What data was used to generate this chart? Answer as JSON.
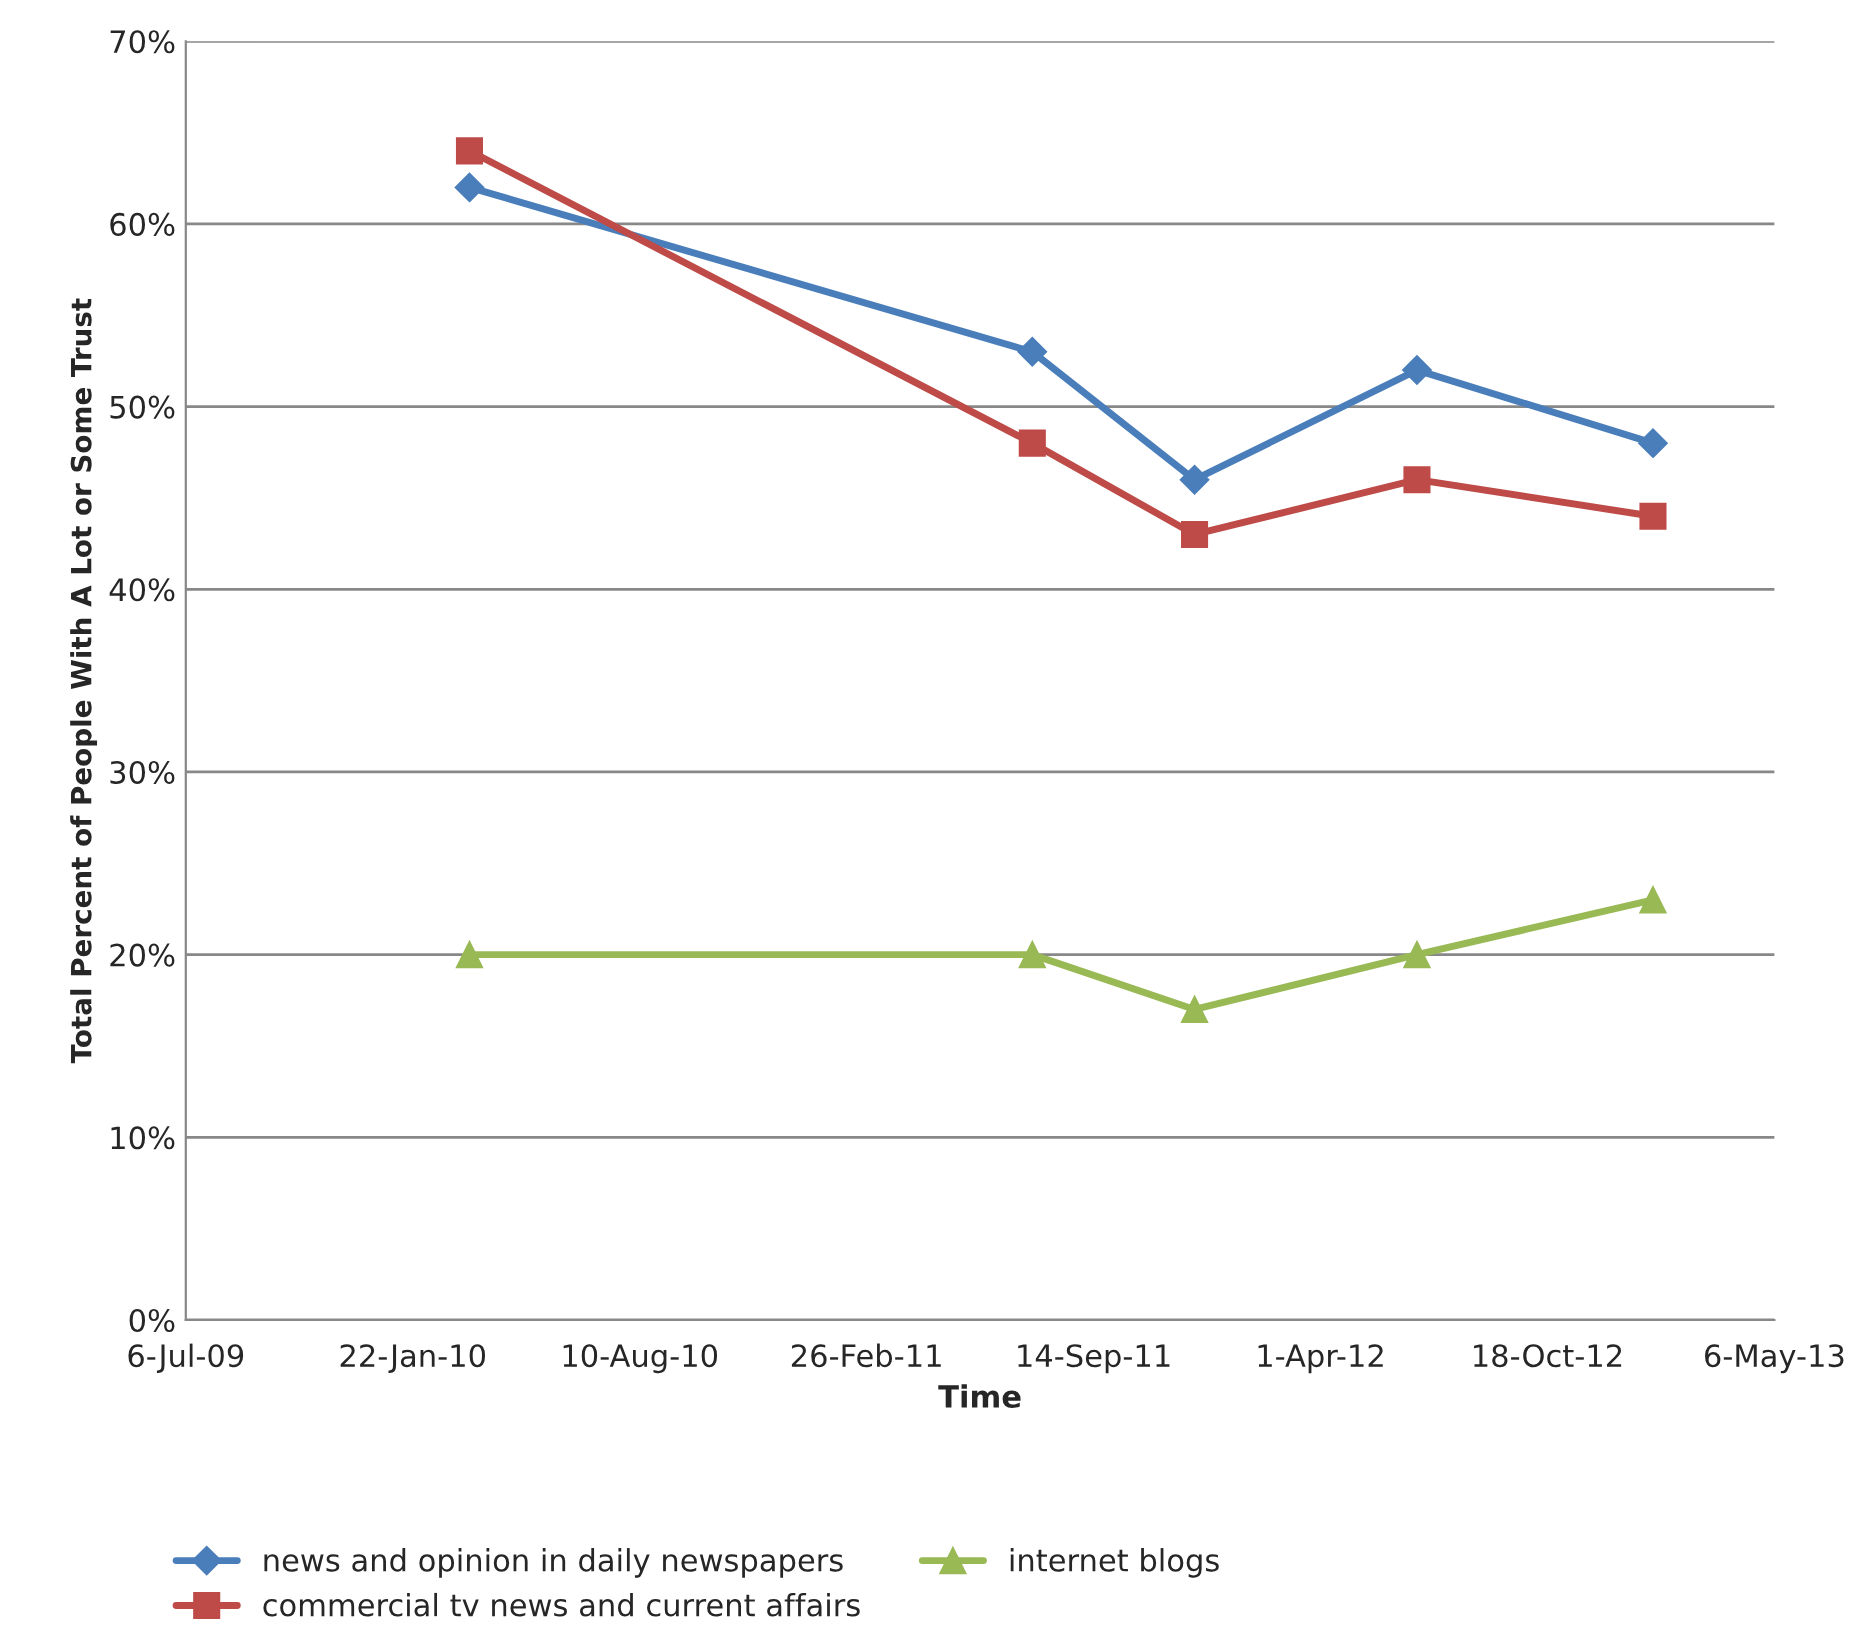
{
  "chart_data": {
    "type": "line",
    "xlabel": "Time",
    "ylabel": "Total Percent of People With A Lot or Some Trust",
    "x": [
      "2010-03-13",
      "2011-07-22",
      "2011-12-12",
      "2012-06-25",
      "2013-01-19"
    ],
    "series": [
      {
        "name": "news and opinion in daily newspapers",
        "color": "#4a7ebb",
        "marker": "diamond",
        "values": [
          62,
          53,
          46,
          52,
          48
        ]
      },
      {
        "name": "commercial tv news and current affairs",
        "color": "#be4b48",
        "marker": "square",
        "values": [
          64,
          48,
          43,
          46,
          44
        ]
      },
      {
        "name": "internet blogs",
        "color": "#98b954",
        "marker": "triangle",
        "values": [
          20,
          20,
          17,
          20,
          23
        ]
      }
    ],
    "xlim": [
      "2009-07-06",
      "2013-05-06"
    ],
    "xticks": [
      {
        "value": "2009-07-06",
        "label": "6-Jul-09"
      },
      {
        "value": "2010-01-22",
        "label": "22-Jan-10"
      },
      {
        "value": "2010-08-10",
        "label": "10-Aug-10"
      },
      {
        "value": "2011-02-26",
        "label": "26-Feb-11"
      },
      {
        "value": "2011-09-14",
        "label": "14-Sep-11"
      },
      {
        "value": "2012-04-01",
        "label": "1-Apr-12"
      },
      {
        "value": "2012-10-18",
        "label": "18-Oct-12"
      },
      {
        "value": "2013-05-06",
        "label": "6-May-13"
      }
    ],
    "ylim": [
      0,
      70
    ],
    "yticks": [
      {
        "value": 0,
        "label": "0%"
      },
      {
        "value": 10,
        "label": "10%"
      },
      {
        "value": 20,
        "label": "20%"
      },
      {
        "value": 30,
        "label": "30%"
      },
      {
        "value": 40,
        "label": "40%"
      },
      {
        "value": 50,
        "label": "50%"
      },
      {
        "value": 60,
        "label": "60%"
      },
      {
        "value": 70,
        "label": "70%"
      }
    ],
    "grid": "y",
    "legend": "bottom",
    "line_style": "solid"
  }
}
